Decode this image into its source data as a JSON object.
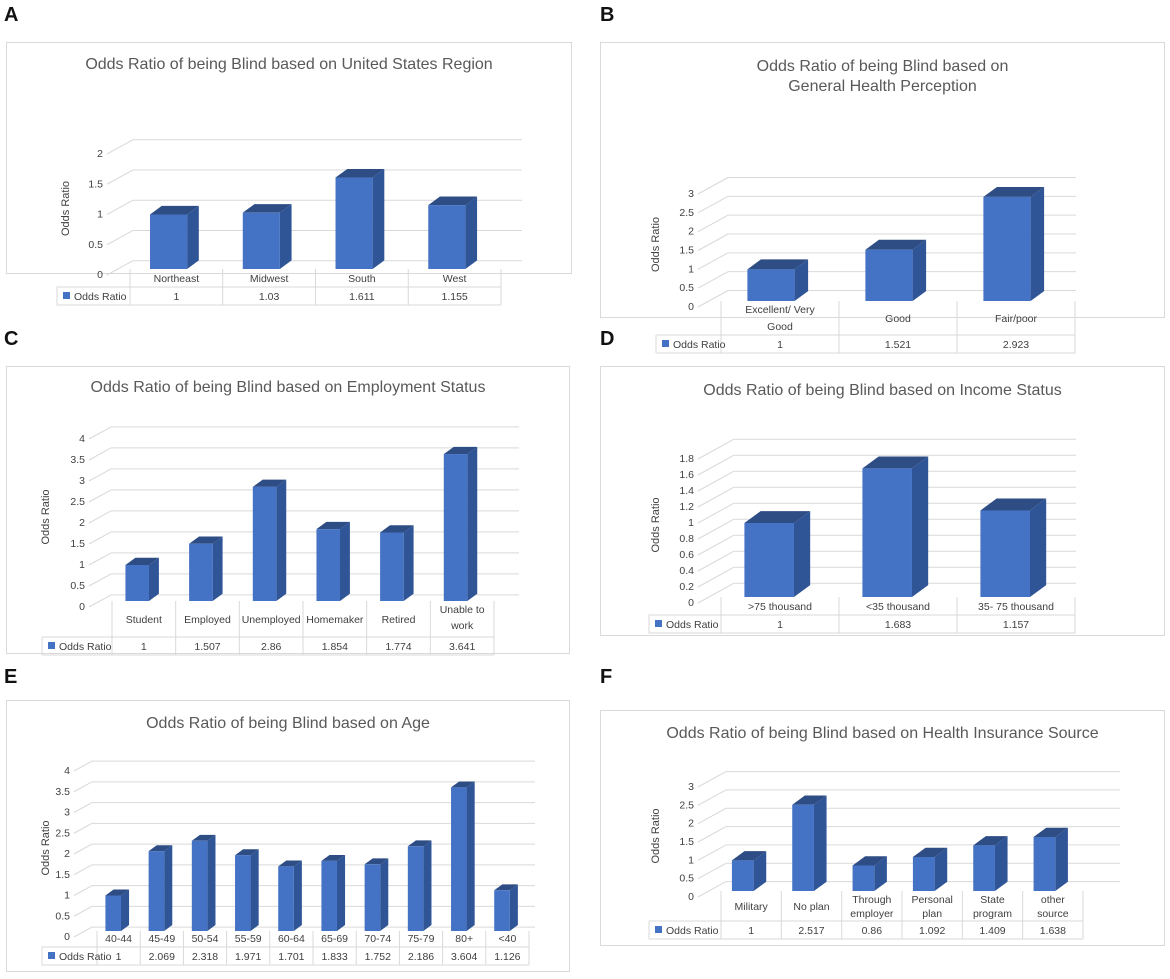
{
  "panel_letters": [
    "A",
    "B",
    "C",
    "D",
    "E",
    "F"
  ],
  "colors": {
    "bar_front": "#4472C4",
    "bar_side": "#2F5597",
    "bar_top": "#2E4D84",
    "grid": "#d9d9d9"
  },
  "chart_data": [
    {
      "type": "bar",
      "title": "Odds Ratio of being Blind based on United States Region",
      "ylabel": "Odds Ratio",
      "legend": "Odds Ratio",
      "categories": [
        "Northeast",
        "Midwest",
        "South",
        "West"
      ],
      "values": [
        1,
        1.03,
        1.611,
        1.155
      ],
      "value_labels": [
        "1",
        "1.03",
        "1.611",
        "1.155"
      ],
      "yticks": [
        "0",
        "0.5",
        "1",
        "1.5",
        "2"
      ],
      "ylim": [
        0,
        2
      ]
    },
    {
      "type": "bar",
      "title": "Odds Ratio of being Blind based on General Health Perception",
      "ylabel": "Odds Ratio",
      "legend": "Odds Ratio",
      "categories": [
        "Excellent/ Very Good",
        "Good",
        "Fair/poor"
      ],
      "values": [
        1,
        1.521,
        2.923
      ],
      "value_labels": [
        "1",
        "1.521",
        "2.923"
      ],
      "yticks": [
        "0",
        "0.5",
        "1",
        "1.5",
        "2",
        "2.5",
        "3"
      ],
      "ylim": [
        0,
        3
      ]
    },
    {
      "type": "bar",
      "title": "Odds Ratio of being Blind based on Employment Status",
      "ylabel": "Odds Ratio",
      "legend": "Odds Ratio",
      "categories": [
        "Student",
        "Employed",
        "Unemployed",
        "Homemaker",
        "Retired",
        "Unable to work"
      ],
      "values": [
        1,
        1.507,
        2.86,
        1.854,
        1.774,
        3.641
      ],
      "value_labels": [
        "1",
        "1.507",
        "2.86",
        "1.854",
        "1.774",
        "3.641"
      ],
      "yticks": [
        "0",
        "0.5",
        "1",
        "1.5",
        "2",
        "2.5",
        "3",
        "3.5",
        "4"
      ],
      "ylim": [
        0,
        4
      ]
    },
    {
      "type": "bar",
      "title": "Odds Ratio of being Blind based on Income Status",
      "ylabel": "Odds Ratio",
      "legend": "Odds Ratio",
      "categories": [
        ">75 thousand",
        "<35 thousand",
        "35- 75 thousand"
      ],
      "values": [
        1,
        1.683,
        1.157
      ],
      "value_labels": [
        "1",
        "1.683",
        "1.157"
      ],
      "yticks": [
        "0",
        "0.2",
        "0.4",
        "0.6",
        "0.8",
        "1",
        "1.2",
        "1.4",
        "1.6",
        "1.8"
      ],
      "ylim": [
        0,
        1.8
      ]
    },
    {
      "type": "bar",
      "title": "Odds Ratio of being Blind based on Age",
      "ylabel": "Odds Ratio",
      "legend": "Odds Ratio",
      "categories": [
        "40-44",
        "45-49",
        "50-54",
        "55-59",
        "60-64",
        "65-69",
        "70-74",
        "75-79",
        "80+",
        "<40"
      ],
      "values": [
        1,
        2.069,
        2.318,
        1.971,
        1.701,
        1.833,
        1.752,
        2.186,
        3.604,
        1.126
      ],
      "value_labels": [
        "1",
        "2.069",
        "2.318",
        "1.971",
        "1.701",
        "1.833",
        "1.752",
        "2.186",
        "3.604",
        "1.126"
      ],
      "yticks": [
        "0",
        "0.5",
        "1",
        "1.5",
        "2",
        "2.5",
        "3",
        "3.5",
        "4"
      ],
      "ylim": [
        0,
        4
      ]
    },
    {
      "type": "bar",
      "title": "Odds Ratio of being Blind based on Health Insurance Source",
      "ylabel": "Odds Ratio",
      "legend": "Odds Ratio",
      "categories": [
        "Military",
        "No plan",
        "Through employer",
        "Personal plan",
        "State program",
        "other source"
      ],
      "values": [
        1,
        2.517,
        0.86,
        1.092,
        1.409,
        1.638
      ],
      "value_labels": [
        "1",
        "2.517",
        "0.86",
        "1.092",
        "1.409",
        "1.638"
      ],
      "yticks": [
        "0",
        "0.5",
        "1",
        "1.5",
        "2",
        "2.5",
        "3"
      ],
      "ylim": [
        0,
        3
      ]
    }
  ]
}
